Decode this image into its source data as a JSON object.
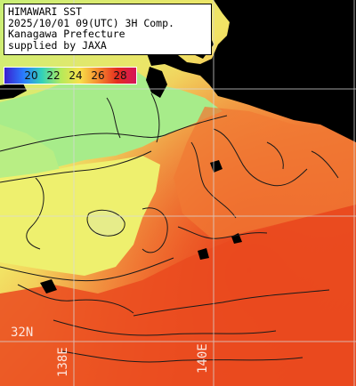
{
  "info": {
    "lines": [
      "HIMAWARI SST",
      "2025/10/01 09(UTC) 3H Comp.",
      "Kanagawa Prefecture",
      "supplied by JAXA"
    ]
  },
  "legend": {
    "ticks": [
      "20",
      "22",
      "24",
      "26",
      "28"
    ],
    "colors": [
      "#3a1ecf",
      "#2a7bff",
      "#33d2b8",
      "#b5ea5a",
      "#f8e04a",
      "#f58a2e",
      "#e52d1f",
      "#d4145a"
    ]
  },
  "grid": {
    "lat_label": "32N",
    "lon_labels": [
      "138E",
      "140E"
    ]
  },
  "map_colors": {
    "land": "#000000",
    "cold_water": "#a7ec8a",
    "mid_water": "#ecf06a",
    "warm_water": "#f39a3c",
    "hot_water": "#ea4a1f",
    "contour": "#1a1a1a",
    "grid": "#d8d8d8"
  }
}
